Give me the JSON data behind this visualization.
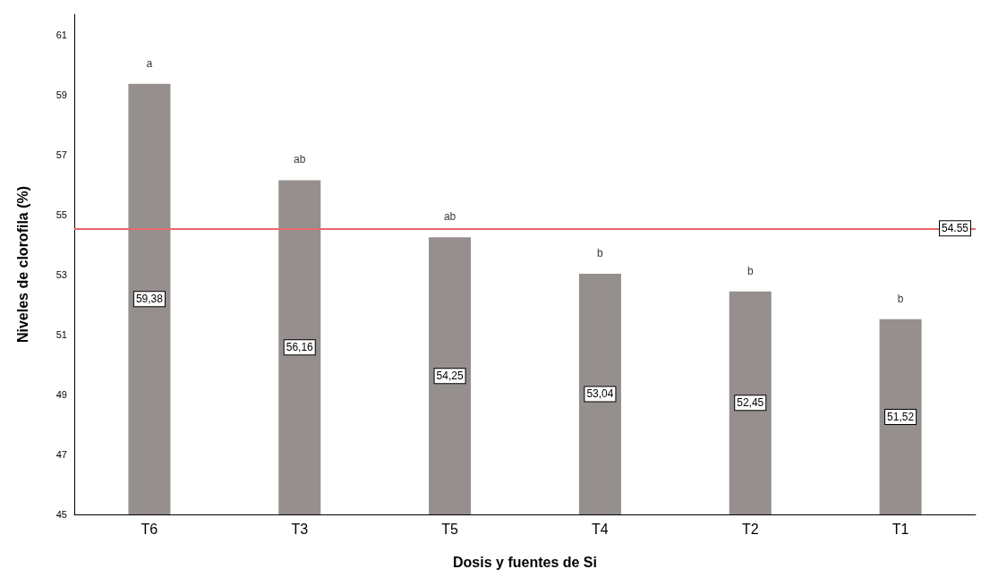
{
  "chart_data": {
    "type": "bar",
    "xlabel": "Dosis y fuentes de Si",
    "ylabel": "Niveles de clorofila (%)",
    "categories": [
      "T6",
      "T3",
      "T5",
      "T4",
      "T2",
      "T1"
    ],
    "values": [
      59.38,
      56.16,
      54.25,
      53.04,
      52.45,
      51.52
    ],
    "value_labels": [
      "59,38",
      "56,16",
      "54,25",
      "53,04",
      "52,45",
      "51,52"
    ],
    "color": "#958f8d",
    "ylim": [
      45,
      61.7
    ],
    "yticks": [
      45,
      47,
      49,
      51,
      53,
      55,
      57,
      59,
      61
    ],
    "grid": false,
    "ref_lines": [
      {
        "axis": "y",
        "value": 54.55,
        "label": "54.55",
        "color": "#e8686a"
      }
    ],
    "annotations": [
      {
        "text": "a",
        "x": "T6",
        "y": 59.38
      },
      {
        "text": "ab",
        "x": "T3",
        "y": 56.16
      },
      {
        "text": "ab",
        "x": "T5",
        "y": 54.25
      },
      {
        "text": "b",
        "x": "T4",
        "y": 53.04
      },
      {
        "text": "b",
        "x": "T2",
        "y": 52.45
      },
      {
        "text": "b",
        "x": "T1",
        "y": 51.52
      }
    ]
  }
}
